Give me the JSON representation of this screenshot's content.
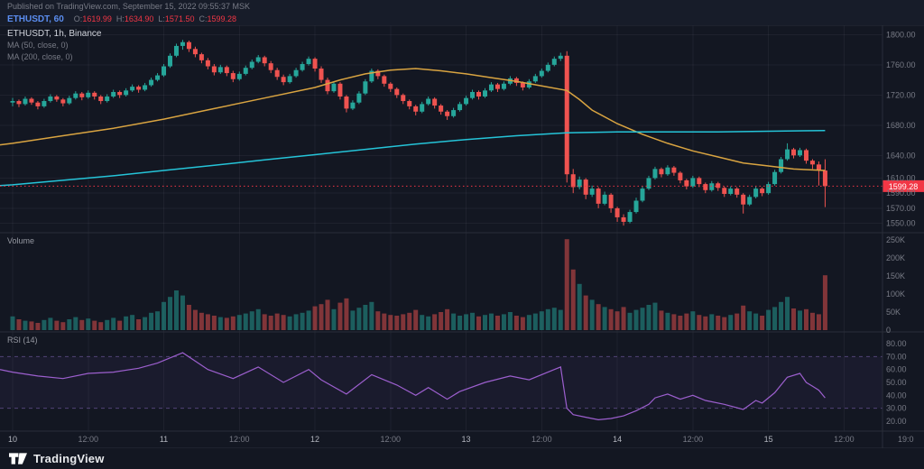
{
  "header": {
    "published": "Published on TradingView.com, September 15, 2022 09:55:37 MSK",
    "symbol": "ETHUSDT, 60",
    "ohlc": {
      "o_label": "O:",
      "o": "1619.99",
      "h_label": "H:",
      "h": "1634.90",
      "l_label": "L:",
      "l": "1571.50",
      "c_label": "C:",
      "c": "1599.28"
    }
  },
  "legend": {
    "main": "ETHUSDT, 1h, Binance",
    "ma50": "MA (50, close, 0)",
    "ma200": "MA (200, close, 0)",
    "volume": "Volume",
    "rsi": "RSI (14)"
  },
  "footer": {
    "brand": "TradingView"
  },
  "colors": {
    "background": "#131722",
    "panel": "#171c29",
    "grid": "rgba(240,243,250,0.05)",
    "separator": "#2a2e39",
    "text_muted": "#787b86",
    "text_bright": "#b2b5be",
    "up": "#26a69a",
    "down": "#ef5350",
    "ma50": "#d9a441",
    "ma200": "#25c4d8",
    "rsi": "#9c5fce",
    "rsi_band": "rgba(155,123,214,0.45)",
    "badge": "#f23645",
    "symbol_blue": "#5b8def"
  },
  "price_axis": {
    "current": "1599.28",
    "labels": [
      [
        "1800.00",
        1800
      ],
      [
        "1760.00",
        1760
      ],
      [
        "1720.00",
        1720
      ],
      [
        "1680.00",
        1680
      ],
      [
        "1640.00",
        1640
      ],
      [
        "1610.00",
        1610
      ],
      [
        "1590.00",
        1590
      ],
      [
        "1570.00",
        1570
      ],
      [
        "1550.00",
        1550
      ]
    ]
  },
  "volume_axis": [
    [
      "250K",
      250
    ],
    [
      "200K",
      200
    ],
    [
      "150K",
      150
    ],
    [
      "100K",
      100
    ],
    [
      "50K",
      50
    ],
    [
      "0",
      0
    ]
  ],
  "rsi_axis": [
    [
      "80.00",
      80
    ],
    [
      "70.00",
      70
    ],
    [
      "60.00",
      60
    ],
    [
      "50.00",
      50
    ],
    [
      "40.00",
      40
    ],
    [
      "30.00",
      30
    ],
    [
      "20.00",
      20
    ]
  ],
  "time_axis": {
    "ticks": [
      [
        0,
        "10",
        1
      ],
      [
        12,
        "12:00",
        0
      ],
      [
        24,
        "11",
        1
      ],
      [
        36,
        "12:00",
        0
      ],
      [
        48,
        "12",
        1
      ],
      [
        60,
        "12:00",
        0
      ],
      [
        72,
        "13",
        1
      ],
      [
        84,
        "12:00",
        0
      ],
      [
        96,
        "14",
        1
      ],
      [
        108,
        "12:00",
        0
      ],
      [
        120,
        "15",
        1
      ],
      [
        132,
        "12:00",
        0
      ]
    ],
    "corner": "19:0"
  },
  "chart_data": {
    "type": "candlestick",
    "symbol": "ETHUSDT",
    "interval": "1h",
    "exchange": "Binance",
    "title": "ETHUSDT, 1h, Binance",
    "timezone": "MSK",
    "x_days": [
      "10",
      "11",
      "12",
      "13",
      "14",
      "15"
    ],
    "price_ylim": [
      1540,
      1810
    ],
    "last": {
      "open": 1619.99,
      "high": 1634.9,
      "low": 1571.5,
      "close": 1599.28
    },
    "candles": [
      [
        1710,
        1716,
        1705,
        1712
      ],
      [
        1712,
        1714,
        1704,
        1708
      ],
      [
        1708,
        1718,
        1706,
        1715
      ],
      [
        1715,
        1717,
        1707,
        1710
      ],
      [
        1710,
        1712,
        1701,
        1705
      ],
      [
        1705,
        1715,
        1703,
        1712
      ],
      [
        1712,
        1721,
        1710,
        1718
      ],
      [
        1718,
        1720,
        1711,
        1714
      ],
      [
        1714,
        1716,
        1705,
        1709
      ],
      [
        1709,
        1719,
        1707,
        1716
      ],
      [
        1716,
        1725,
        1714,
        1722
      ],
      [
        1722,
        1724,
        1713,
        1717
      ],
      [
        1717,
        1726,
        1715,
        1723
      ],
      [
        1723,
        1725,
        1714,
        1718
      ],
      [
        1718,
        1720,
        1708,
        1712
      ],
      [
        1712,
        1721,
        1710,
        1718
      ],
      [
        1718,
        1727,
        1716,
        1724
      ],
      [
        1724,
        1726,
        1716,
        1720
      ],
      [
        1720,
        1729,
        1718,
        1726
      ],
      [
        1726,
        1734,
        1724,
        1731
      ],
      [
        1731,
        1733,
        1723,
        1727
      ],
      [
        1727,
        1736,
        1725,
        1733
      ],
      [
        1733,
        1743,
        1731,
        1740
      ],
      [
        1740,
        1749,
        1738,
        1746
      ],
      [
        1746,
        1761,
        1744,
        1758
      ],
      [
        1758,
        1775,
        1756,
        1772
      ],
      [
        1772,
        1788,
        1770,
        1785
      ],
      [
        1785,
        1793,
        1780,
        1790
      ],
      [
        1790,
        1792,
        1777,
        1781
      ],
      [
        1781,
        1784,
        1770,
        1774
      ],
      [
        1774,
        1776,
        1762,
        1766
      ],
      [
        1766,
        1769,
        1754,
        1758
      ],
      [
        1758,
        1761,
        1746,
        1750
      ],
      [
        1750,
        1760,
        1748,
        1757
      ],
      [
        1757,
        1759,
        1745,
        1749
      ],
      [
        1749,
        1752,
        1737,
        1741
      ],
      [
        1741,
        1751,
        1739,
        1748
      ],
      [
        1748,
        1759,
        1746,
        1756
      ],
      [
        1756,
        1767,
        1754,
        1764
      ],
      [
        1764,
        1773,
        1762,
        1770
      ],
      [
        1770,
        1772,
        1758,
        1762
      ],
      [
        1762,
        1765,
        1749,
        1753
      ],
      [
        1753,
        1756,
        1740,
        1744
      ],
      [
        1744,
        1747,
        1733,
        1737
      ],
      [
        1737,
        1748,
        1735,
        1745
      ],
      [
        1745,
        1756,
        1743,
        1753
      ],
      [
        1753,
        1764,
        1751,
        1761
      ],
      [
        1761,
        1771,
        1759,
        1768
      ],
      [
        1768,
        1770,
        1751,
        1755
      ],
      [
        1755,
        1758,
        1736,
        1740
      ],
      [
        1740,
        1743,
        1721,
        1725
      ],
      [
        1725,
        1738,
        1723,
        1735
      ],
      [
        1735,
        1737,
        1714,
        1718
      ],
      [
        1718,
        1720,
        1697,
        1702
      ],
      [
        1702,
        1713,
        1700,
        1710
      ],
      [
        1710,
        1725,
        1708,
        1722
      ],
      [
        1722,
        1741,
        1720,
        1738
      ],
      [
        1738,
        1755,
        1736,
        1752
      ],
      [
        1752,
        1754,
        1741,
        1745
      ],
      [
        1745,
        1747,
        1731,
        1735
      ],
      [
        1735,
        1737,
        1724,
        1728
      ],
      [
        1728,
        1730,
        1716,
        1720
      ],
      [
        1720,
        1722,
        1708,
        1712
      ],
      [
        1712,
        1714,
        1701,
        1705
      ],
      [
        1705,
        1707,
        1693,
        1698
      ],
      [
        1698,
        1711,
        1696,
        1708
      ],
      [
        1708,
        1718,
        1706,
        1715
      ],
      [
        1715,
        1717,
        1702,
        1706
      ],
      [
        1706,
        1708,
        1694,
        1698
      ],
      [
        1698,
        1700,
        1687,
        1692
      ],
      [
        1692,
        1703,
        1690,
        1700
      ],
      [
        1700,
        1711,
        1698,
        1708
      ],
      [
        1708,
        1719,
        1706,
        1716
      ],
      [
        1716,
        1727,
        1714,
        1724
      ],
      [
        1724,
        1726,
        1714,
        1718
      ],
      [
        1718,
        1729,
        1716,
        1726
      ],
      [
        1726,
        1737,
        1724,
        1734
      ],
      [
        1734,
        1736,
        1724,
        1728
      ],
      [
        1728,
        1738,
        1726,
        1735
      ],
      [
        1735,
        1745,
        1733,
        1742
      ],
      [
        1742,
        1744,
        1732,
        1736
      ],
      [
        1736,
        1738,
        1726,
        1730
      ],
      [
        1730,
        1741,
        1728,
        1738
      ],
      [
        1738,
        1748,
        1736,
        1745
      ],
      [
        1745,
        1755,
        1743,
        1752
      ],
      [
        1752,
        1763,
        1750,
        1760
      ],
      [
        1760,
        1771,
        1758,
        1768
      ],
      [
        1768,
        1776,
        1765,
        1772
      ],
      [
        1772,
        1778,
        1604,
        1615
      ],
      [
        1615,
        1622,
        1590,
        1598
      ],
      [
        1598,
        1612,
        1595,
        1608
      ],
      [
        1608,
        1610,
        1582,
        1588
      ],
      [
        1588,
        1600,
        1585,
        1596
      ],
      [
        1596,
        1598,
        1570,
        1576
      ],
      [
        1576,
        1592,
        1574,
        1588
      ],
      [
        1588,
        1590,
        1564,
        1570
      ],
      [
        1570,
        1572,
        1552,
        1558
      ],
      [
        1558,
        1562,
        1547,
        1552
      ],
      [
        1552,
        1568,
        1550,
        1565
      ],
      [
        1565,
        1584,
        1563,
        1580
      ],
      [
        1580,
        1599,
        1578,
        1596
      ],
      [
        1596,
        1613,
        1594,
        1610
      ],
      [
        1610,
        1625,
        1608,
        1622
      ],
      [
        1622,
        1624,
        1611,
        1615
      ],
      [
        1615,
        1627,
        1613,
        1624
      ],
      [
        1624,
        1626,
        1613,
        1617
      ],
      [
        1617,
        1619,
        1603,
        1607
      ],
      [
        1607,
        1609,
        1595,
        1599
      ],
      [
        1599,
        1613,
        1597,
        1610
      ],
      [
        1610,
        1612,
        1598,
        1602
      ],
      [
        1602,
        1604,
        1590,
        1594
      ],
      [
        1594,
        1606,
        1592,
        1603
      ],
      [
        1603,
        1605,
        1593,
        1597
      ],
      [
        1597,
        1599,
        1585,
        1589
      ],
      [
        1589,
        1599,
        1587,
        1596
      ],
      [
        1596,
        1598,
        1584,
        1588
      ],
      [
        1588,
        1590,
        1563,
        1575
      ],
      [
        1575,
        1588,
        1573,
        1585
      ],
      [
        1585,
        1599,
        1583,
        1596
      ],
      [
        1596,
        1598,
        1586,
        1590
      ],
      [
        1590,
        1605,
        1588,
        1602
      ],
      [
        1602,
        1621,
        1600,
        1618
      ],
      [
        1618,
        1638,
        1616,
        1635
      ],
      [
        1635,
        1656,
        1633,
        1648
      ],
      [
        1648,
        1650,
        1636,
        1640
      ],
      [
        1640,
        1650,
        1638,
        1647
      ],
      [
        1647,
        1649,
        1629,
        1633
      ],
      [
        1633,
        1635,
        1622,
        1628
      ],
      [
        1628,
        1632,
        1600,
        1620
      ],
      [
        1619.99,
        1634.9,
        1571.5,
        1599.28
      ]
    ],
    "ma50_points": [
      [
        -2,
        1654
      ],
      [
        0,
        1656
      ],
      [
        8,
        1666
      ],
      [
        16,
        1676
      ],
      [
        24,
        1688
      ],
      [
        32,
        1702
      ],
      [
        40,
        1716
      ],
      [
        48,
        1730
      ],
      [
        52,
        1740
      ],
      [
        56,
        1748
      ],
      [
        60,
        1753
      ],
      [
        64,
        1755
      ],
      [
        68,
        1752
      ],
      [
        72,
        1748
      ],
      [
        76,
        1743
      ],
      [
        80,
        1738
      ],
      [
        84,
        1732
      ],
      [
        88,
        1726
      ],
      [
        90,
        1714
      ],
      [
        92,
        1700
      ],
      [
        96,
        1682
      ],
      [
        100,
        1668
      ],
      [
        104,
        1656
      ],
      [
        108,
        1646
      ],
      [
        112,
        1638
      ],
      [
        116,
        1630
      ],
      [
        120,
        1626
      ],
      [
        124,
        1622
      ],
      [
        129,
        1620
      ]
    ],
    "ma200_points": [
      [
        -2,
        1600
      ],
      [
        0,
        1601
      ],
      [
        8,
        1607
      ],
      [
        16,
        1613
      ],
      [
        24,
        1620
      ],
      [
        32,
        1627
      ],
      [
        40,
        1634
      ],
      [
        48,
        1641
      ],
      [
        56,
        1648
      ],
      [
        64,
        1655
      ],
      [
        72,
        1661
      ],
      [
        80,
        1666
      ],
      [
        88,
        1670
      ],
      [
        96,
        1671
      ],
      [
        104,
        1671
      ],
      [
        112,
        1671
      ],
      [
        120,
        1672
      ],
      [
        129,
        1673
      ]
    ],
    "volume": {
      "type": "bar",
      "unit": "K",
      "ylim": [
        0,
        260
      ],
      "values": [
        38,
        30,
        26,
        24,
        20,
        28,
        34,
        26,
        22,
        30,
        36,
        28,
        32,
        26,
        22,
        28,
        34,
        26,
        38,
        42,
        30,
        36,
        48,
        52,
        78,
        92,
        110,
        96,
        70,
        56,
        48,
        44,
        40,
        36,
        34,
        38,
        42,
        46,
        52,
        58,
        44,
        40,
        46,
        42,
        38,
        44,
        48,
        54,
        66,
        72,
        84,
        58,
        76,
        88,
        54,
        62,
        70,
        78,
        52,
        46,
        42,
        40,
        44,
        48,
        56,
        42,
        38,
        44,
        50,
        58,
        46,
        40,
        44,
        48,
        38,
        42,
        46,
        40,
        44,
        50,
        40,
        36,
        42,
        46,
        52,
        58,
        62,
        56,
        252,
        168,
        128,
        96,
        84,
        72,
        64,
        58,
        52,
        64,
        48,
        56,
        62,
        70,
        76,
        54,
        48,
        44,
        40,
        46,
        52,
        42,
        38,
        44,
        40,
        36,
        42,
        46,
        68,
        52,
        46,
        40,
        56,
        64,
        78,
        92,
        60,
        54,
        58,
        48,
        44,
        152
      ]
    },
    "rsi": {
      "type": "line",
      "period": 14,
      "ylim": [
        15,
        85
      ],
      "bands": [
        70,
        30
      ],
      "points": [
        [
          -2,
          60
        ],
        [
          0,
          58
        ],
        [
          4,
          55
        ],
        [
          8,
          53
        ],
        [
          12,
          57
        ],
        [
          16,
          58
        ],
        [
          20,
          61
        ],
        [
          23,
          65
        ],
        [
          27,
          73
        ],
        [
          31,
          60
        ],
        [
          35,
          53
        ],
        [
          39,
          62
        ],
        [
          43,
          50
        ],
        [
          47,
          60
        ],
        [
          49,
          52
        ],
        [
          53,
          41
        ],
        [
          57,
          56
        ],
        [
          61,
          48
        ],
        [
          64,
          40
        ],
        [
          66,
          46
        ],
        [
          69,
          37
        ],
        [
          71,
          43
        ],
        [
          75,
          50
        ],
        [
          79,
          55
        ],
        [
          82,
          52
        ],
        [
          86,
          60
        ],
        [
          87,
          62
        ],
        [
          88,
          30
        ],
        [
          89,
          25
        ],
        [
          91,
          23
        ],
        [
          93,
          21
        ],
        [
          95,
          22
        ],
        [
          97,
          24
        ],
        [
          99,
          28
        ],
        [
          101,
          33
        ],
        [
          102,
          38
        ],
        [
          104,
          41
        ],
        [
          106,
          37
        ],
        [
          108,
          40
        ],
        [
          110,
          36
        ],
        [
          113,
          33
        ],
        [
          116,
          29
        ],
        [
          118,
          36
        ],
        [
          119,
          34
        ],
        [
          121,
          42
        ],
        [
          123,
          54
        ],
        [
          125,
          57
        ],
        [
          126,
          50
        ],
        [
          127,
          47
        ],
        [
          128,
          44
        ],
        [
          129,
          38
        ]
      ]
    }
  }
}
